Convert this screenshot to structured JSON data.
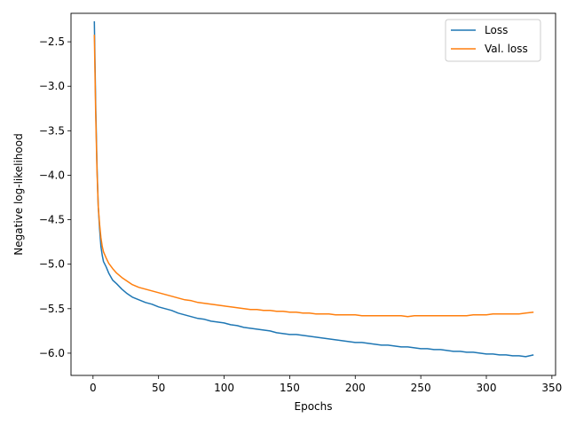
{
  "chart_data": {
    "type": "line",
    "title": "",
    "xlabel": "Epochs",
    "ylabel": "Negative log-likelihood",
    "xlim": [
      -16.8,
      352.8
    ],
    "ylim": [
      -6.25,
      -2.18
    ],
    "xticks": [
      0,
      50,
      100,
      150,
      200,
      250,
      300,
      350
    ],
    "yticks": [
      -6.0,
      -5.5,
      -5.0,
      -4.5,
      -4.0,
      -3.5,
      -3.0,
      -2.5
    ],
    "ytick_labels": [
      "−6.0",
      "−5.5",
      "−5.0",
      "−4.5",
      "−4.0",
      "−3.5",
      "−3.0",
      "−2.5"
    ],
    "grid": false,
    "legend": "top-right",
    "series": [
      {
        "name": "Loss",
        "color": "#1f77b4",
        "x": [
          1,
          2,
          3,
          4,
          5,
          6,
          7,
          8,
          10,
          12,
          15,
          18,
          22,
          26,
          30,
          35,
          40,
          45,
          50,
          55,
          60,
          65,
          70,
          75,
          80,
          85,
          90,
          95,
          100,
          105,
          110,
          115,
          120,
          125,
          130,
          135,
          140,
          145,
          150,
          155,
          160,
          165,
          170,
          175,
          180,
          185,
          190,
          195,
          200,
          205,
          210,
          215,
          220,
          225,
          230,
          235,
          240,
          245,
          250,
          255,
          260,
          265,
          270,
          275,
          280,
          285,
          290,
          295,
          300,
          305,
          310,
          315,
          320,
          325,
          330,
          336
        ],
        "y": [
          -2.27,
          -3.2,
          -3.9,
          -4.35,
          -4.6,
          -4.8,
          -4.9,
          -4.97,
          -5.03,
          -5.1,
          -5.18,
          -5.22,
          -5.28,
          -5.33,
          -5.37,
          -5.4,
          -5.43,
          -5.45,
          -5.48,
          -5.5,
          -5.52,
          -5.55,
          -5.57,
          -5.59,
          -5.61,
          -5.62,
          -5.64,
          -5.65,
          -5.66,
          -5.68,
          -5.69,
          -5.71,
          -5.72,
          -5.73,
          -5.74,
          -5.75,
          -5.77,
          -5.78,
          -5.79,
          -5.79,
          -5.8,
          -5.81,
          -5.82,
          -5.83,
          -5.84,
          -5.85,
          -5.86,
          -5.87,
          -5.88,
          -5.88,
          -5.89,
          -5.9,
          -5.91,
          -5.91,
          -5.92,
          -5.93,
          -5.93,
          -5.94,
          -5.95,
          -5.95,
          -5.96,
          -5.96,
          -5.97,
          -5.98,
          -5.98,
          -5.99,
          -5.99,
          -6.0,
          -6.01,
          -6.01,
          -6.02,
          -6.02,
          -6.03,
          -6.03,
          -6.04,
          -6.02
        ]
      },
      {
        "name": "Val. loss",
        "color": "#ff7f0e",
        "x": [
          1,
          2,
          3,
          4,
          5,
          6,
          7,
          8,
          10,
          12,
          15,
          18,
          22,
          26,
          30,
          35,
          40,
          45,
          50,
          55,
          60,
          65,
          70,
          75,
          80,
          85,
          90,
          95,
          100,
          105,
          110,
          115,
          120,
          125,
          130,
          135,
          140,
          145,
          150,
          155,
          160,
          165,
          170,
          175,
          180,
          185,
          190,
          195,
          200,
          205,
          210,
          215,
          220,
          225,
          230,
          235,
          240,
          245,
          250,
          255,
          260,
          265,
          270,
          275,
          280,
          285,
          290,
          295,
          300,
          305,
          310,
          315,
          320,
          325,
          330,
          336
        ],
        "y": [
          -2.42,
          -3.3,
          -3.95,
          -4.35,
          -4.55,
          -4.7,
          -4.8,
          -4.86,
          -4.93,
          -4.99,
          -5.05,
          -5.1,
          -5.15,
          -5.19,
          -5.23,
          -5.26,
          -5.28,
          -5.3,
          -5.32,
          -5.34,
          -5.36,
          -5.38,
          -5.4,
          -5.41,
          -5.43,
          -5.44,
          -5.45,
          -5.46,
          -5.47,
          -5.48,
          -5.49,
          -5.5,
          -5.51,
          -5.51,
          -5.52,
          -5.52,
          -5.53,
          -5.53,
          -5.54,
          -5.54,
          -5.55,
          -5.55,
          -5.56,
          -5.56,
          -5.56,
          -5.57,
          -5.57,
          -5.57,
          -5.57,
          -5.58,
          -5.58,
          -5.58,
          -5.58,
          -5.58,
          -5.58,
          -5.58,
          -5.59,
          -5.58,
          -5.58,
          -5.58,
          -5.58,
          -5.58,
          -5.58,
          -5.58,
          -5.58,
          -5.58,
          -5.57,
          -5.57,
          -5.57,
          -5.56,
          -5.56,
          -5.56,
          -5.56,
          -5.56,
          -5.55,
          -5.54
        ]
      }
    ]
  }
}
